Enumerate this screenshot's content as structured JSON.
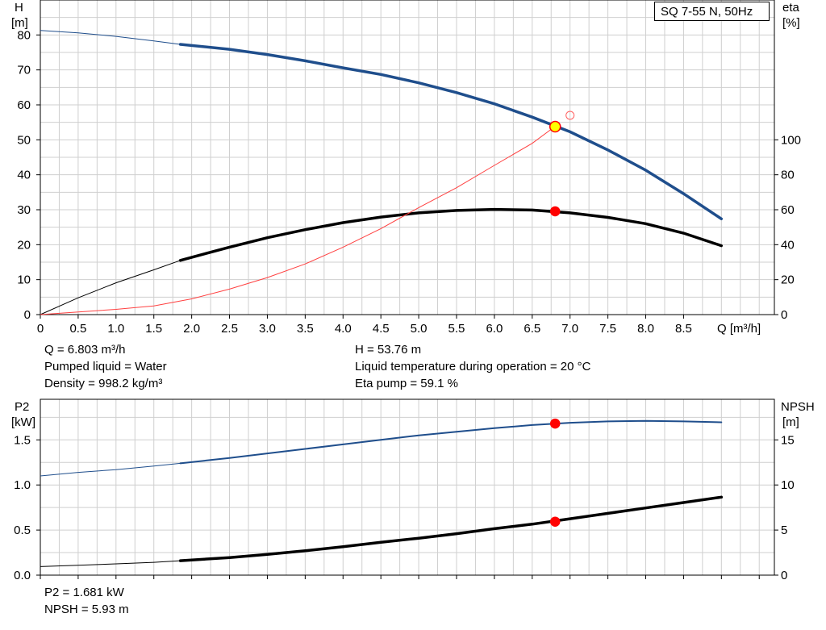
{
  "chart_data": [
    {
      "type": "line",
      "title": "SQ 7-55 N, 50Hz",
      "xlabel": "Q [m³/h]",
      "ylabel_left": [
        "H",
        "[m]"
      ],
      "ylabel_right": [
        "eta",
        "[%]"
      ],
      "xlim": [
        0,
        9.7
      ],
      "ylim_left": [
        0,
        90
      ],
      "ylim_right": [
        0,
        180
      ],
      "x_ticks": [
        "0",
        "0.5",
        "1.0",
        "1.5",
        "2.0",
        "2.5",
        "3.0",
        "3.5",
        "4.0",
        "4.5",
        "5.0",
        "5.5",
        "6.0",
        "6.5",
        "7.0",
        "7.5",
        "8.0",
        "8.5"
      ],
      "y_ticks_left": [
        "0",
        "10",
        "20",
        "30",
        "40",
        "50",
        "60",
        "70",
        "80"
      ],
      "y_ticks_right": [
        "0",
        "20",
        "40",
        "60",
        "80",
        "100"
      ],
      "grid": true,
      "legend": "top-right",
      "series": [
        {
          "name": "",
          "axis": "left",
          "color": "#1f4e8c",
          "x": [
            0,
            0.5,
            1.0,
            1.5,
            1.85,
            2.5,
            3.0,
            3.5,
            4.0,
            4.5,
            5.0,
            5.5,
            6.0,
            6.5,
            7.0,
            7.5,
            8.0,
            8.5,
            9.0
          ],
          "y": [
            81.3,
            80.6,
            79.6,
            78.3,
            77.3,
            75.9,
            74.4,
            72.6,
            70.6,
            68.7,
            66.3,
            63.5,
            60.3,
            56.5,
            52.3,
            47.1,
            41.3,
            34.6,
            27.4
          ]
        },
        {
          "name": "",
          "axis": "right",
          "color": "#000000",
          "x": [
            0,
            0.5,
            1.0,
            1.5,
            1.85,
            2.5,
            3.0,
            3.5,
            4.0,
            4.5,
            5.0,
            5.5,
            6.0,
            6.5,
            7.0,
            7.5,
            8.0,
            8.5,
            9.0
          ],
          "y": [
            0,
            9.6,
            18.2,
            25.6,
            31.0,
            38.6,
            44.0,
            48.6,
            52.6,
            55.8,
            58.2,
            59.6,
            60.2,
            59.8,
            58.2,
            55.6,
            52.0,
            46.6,
            39.4
          ]
        },
        {
          "name": "",
          "axis": "left",
          "color": "#ff4040",
          "x": [
            0,
            1.0,
            1.5,
            2.0,
            2.5,
            3.0,
            3.5,
            4.0,
            4.5,
            5.0,
            5.5,
            6.0,
            6.5,
            6.8
          ],
          "y": [
            0,
            1.5,
            2.5,
            4.5,
            7.3,
            10.6,
            14.5,
            19.3,
            24.6,
            30.6,
            36.3,
            42.7,
            49.0,
            53.8
          ]
        }
      ],
      "markers": [
        {
          "x": 6.803,
          "y": 53.76,
          "axis": "left",
          "fill": "#ffff00",
          "stroke": "#ff0000"
        },
        {
          "x": 6.803,
          "y": 59.1,
          "axis": "right",
          "fill": "#ff0000",
          "stroke": "#ff0000"
        },
        {
          "x": 7.0,
          "y": 57,
          "axis": "left",
          "fill": "none",
          "stroke": "#ff6060"
        }
      ]
    },
    {
      "type": "line",
      "ylabel_left": [
        "P2",
        "[kW]"
      ],
      "ylabel_right": [
        "NPSH",
        "[m]"
      ],
      "xlim": [
        0,
        9.7
      ],
      "ylim_left": [
        0,
        1.95
      ],
      "ylim_right": [
        0,
        19.5
      ],
      "y_ticks_left": [
        "0.0",
        "0.5",
        "1.0",
        "1.5"
      ],
      "y_ticks_right": [
        "0",
        "5",
        "10",
        "15"
      ],
      "grid": true,
      "series": [
        {
          "name": "",
          "axis": "left",
          "color": "#1f4e8c",
          "x": [
            0,
            0.5,
            1.0,
            1.5,
            1.85,
            2.5,
            3.0,
            3.5,
            4.0,
            4.5,
            5.0,
            5.5,
            6.0,
            6.5,
            7.0,
            7.5,
            8.0,
            8.5,
            9.0
          ],
          "y": [
            1.1,
            1.14,
            1.17,
            1.21,
            1.24,
            1.3,
            1.35,
            1.4,
            1.45,
            1.5,
            1.55,
            1.59,
            1.63,
            1.665,
            1.69,
            1.705,
            1.71,
            1.705,
            1.695
          ]
        },
        {
          "name": "",
          "axis": "right",
          "color": "#000000",
          "x": [
            0,
            0.5,
            1.0,
            1.5,
            1.85,
            2.5,
            3.0,
            3.5,
            4.0,
            4.5,
            5.0,
            5.5,
            6.0,
            6.5,
            7.0,
            7.5,
            8.0,
            8.5,
            9.0
          ],
          "y": [
            0.95,
            1.1,
            1.25,
            1.42,
            1.6,
            1.95,
            2.3,
            2.7,
            3.15,
            3.65,
            4.1,
            4.6,
            5.15,
            5.65,
            6.25,
            6.85,
            7.45,
            8.05,
            8.65
          ]
        }
      ],
      "markers": [
        {
          "x": 6.803,
          "y": 1.681,
          "axis": "left",
          "fill": "#ff0000",
          "stroke": "#ff0000"
        },
        {
          "x": 6.803,
          "y": 5.93,
          "axis": "right",
          "fill": "#ff0000",
          "stroke": "#ff0000"
        }
      ]
    }
  ],
  "info_top_left": [
    "Q = 6.803 m³/h",
    "Pumped liquid = Water",
    "Density = 998.2 kg/m³"
  ],
  "info_top_right": [
    "H = 53.76 m",
    "Liquid temperature during operation = 20 °C",
    "Eta pump = 59.1 %"
  ],
  "info_bottom": [
    "P2 = 1.681 kW",
    "NPSH = 5.93 m"
  ]
}
